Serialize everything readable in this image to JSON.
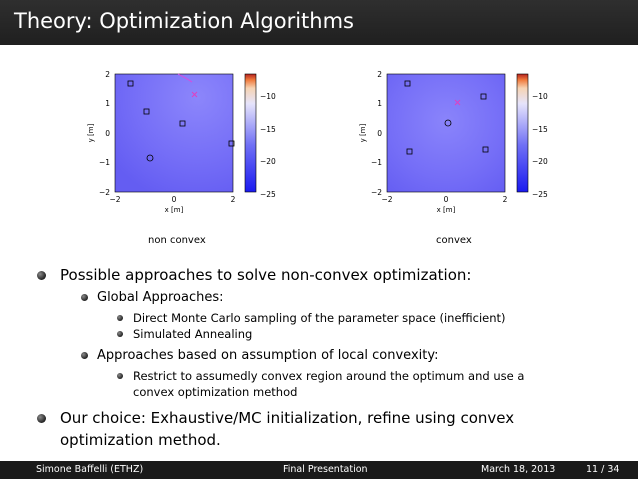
{
  "slide": {
    "title": "Theory: Optimization Algorithms"
  },
  "figures": [
    {
      "caption": "non convex",
      "xlabel": "x [m]",
      "ylabel": "y [m]",
      "xticks": [
        "−2",
        "0",
        "2"
      ],
      "yticks": [
        "2",
        "1",
        "0",
        "−1",
        "−2"
      ],
      "colorbar_ticks": [
        "−10",
        "−15",
        "−20",
        "−25"
      ]
    },
    {
      "caption": "convex",
      "xlabel": "x [m]",
      "ylabel": "y [m]",
      "xticks": [
        "−2",
        "0",
        "2"
      ],
      "yticks": [
        "2",
        "1",
        "0",
        "−1",
        "−2"
      ],
      "colorbar_ticks": [
        "−10",
        "−15",
        "−20",
        "−25"
      ]
    }
  ],
  "bullets": {
    "b1": "Possible approaches to solve non-convex optimization:",
    "b1_1": "Global Approaches:",
    "b1_1_1": "Direct Monte Carlo sampling of the parameter space (inefficient)",
    "b1_1_2": "Simulated Annealing",
    "b1_2": "Approaches based on assumption of local convexity:",
    "b1_2_1": "Restrict to assumedly convex region around the optimum and use a",
    "b1_2_1b": "convex optimization method",
    "b2": "Our choice: Exhaustive/MC initialization, refine using convex",
    "b2b": "optimization method."
  },
  "footer": {
    "author": "Simone Baffelli  (ETHZ)",
    "talk": "Final Presentation",
    "date": "March 18, 2013",
    "page": "11 / 34"
  },
  "colors": {
    "title_bg": "#262626",
    "plot_inner": "#7a72f8",
    "plot_outer": "#6a64f4",
    "marker_cross": "#e040c0"
  }
}
